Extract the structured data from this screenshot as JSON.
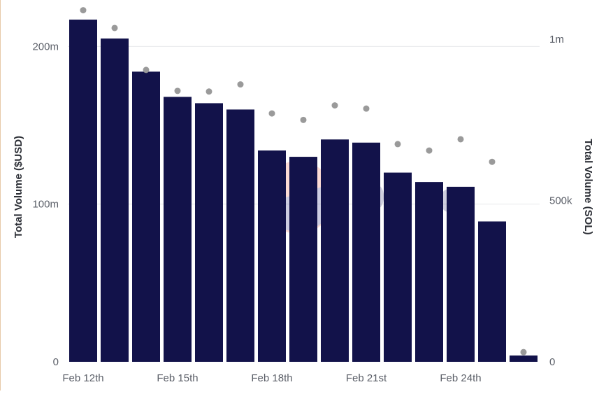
{
  "chart_data": {
    "type": "bar",
    "categories": [
      "Feb 12th",
      "Feb 13th",
      "Feb 14th",
      "Feb 15th",
      "Feb 16th",
      "Feb 17th",
      "Feb 18th",
      "Feb 19th",
      "Feb 20th",
      "Feb 21st",
      "Feb 22nd",
      "Feb 23rd",
      "Feb 24th",
      "Feb 25th",
      "Feb 26th"
    ],
    "x_tick_labels": [
      "Feb 12th",
      "Feb 15th",
      "Feb 18th",
      "Feb 21st",
      "Feb 24th"
    ],
    "series": [
      {
        "kind": "bar",
        "axis": "left",
        "color": "#12124a",
        "values": [
          217,
          205,
          184,
          168,
          164,
          160,
          134,
          130,
          141,
          139,
          120,
          114,
          111,
          89,
          4
        ]
      },
      {
        "kind": "scatter",
        "axis": "right",
        "color": "#9a9a9a",
        "values": [
          1090000,
          1035000,
          905000,
          840000,
          838000,
          860000,
          770000,
          750000,
          795000,
          785000,
          675000,
          655000,
          690000,
          620000,
          30000
        ]
      }
    ],
    "ylabel": "Total Volume ($USD)",
    "ylim": [
      0,
      225
    ],
    "yticks": [
      0,
      100,
      200
    ],
    "ytick_labels": [
      "0",
      "100m",
      "200m"
    ],
    "y2label": "Total Volume (SOL)",
    "y2lim": [
      0,
      1100000
    ],
    "y2ticks": [
      0,
      500000,
      1000000
    ],
    "y2tick_labels": [
      "0",
      "500k",
      "1m"
    ],
    "grid": true,
    "watermark": "Dune"
  }
}
